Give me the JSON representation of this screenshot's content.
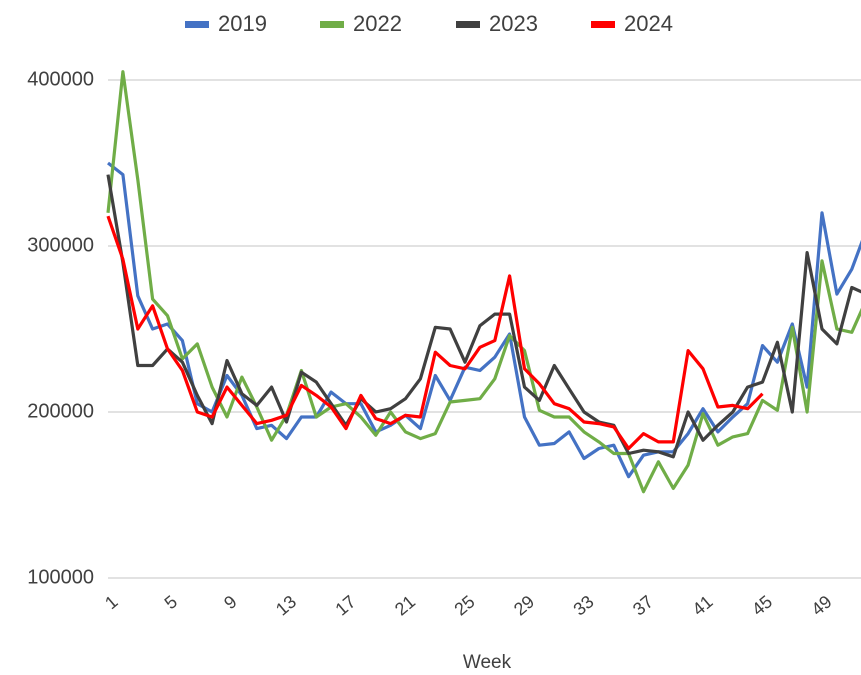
{
  "chart_data": {
    "type": "line",
    "x_label": "Week",
    "x": [
      1,
      2,
      3,
      4,
      5,
      6,
      7,
      8,
      9,
      10,
      11,
      12,
      13,
      14,
      15,
      16,
      17,
      18,
      19,
      20,
      21,
      22,
      23,
      24,
      25,
      26,
      27,
      28,
      29,
      30,
      31,
      32,
      33,
      34,
      35,
      36,
      37,
      38,
      39,
      40,
      41,
      42,
      43,
      44,
      45,
      46,
      47,
      48,
      49,
      50,
      51,
      52
    ],
    "xlim": [
      1,
      52
    ],
    "xticks": [
      1,
      5,
      9,
      13,
      17,
      21,
      25,
      29,
      33,
      37,
      41,
      45,
      49
    ],
    "ylim": [
      100000,
      400000
    ],
    "yticks": [
      100000,
      200000,
      300000,
      400000
    ],
    "grid": true,
    "legend": "top",
    "series": [
      {
        "name": "2019",
        "color": "#4472c4",
        "values": [
          350000,
          343000,
          270000,
          250000,
          253000,
          243000,
          205000,
          200000,
          222000,
          210000,
          190000,
          192000,
          184000,
          197000,
          197000,
          212000,
          205000,
          205000,
          188000,
          192000,
          198000,
          190000,
          222000,
          207000,
          227000,
          225000,
          233000,
          247000,
          197000,
          180000,
          181000,
          188000,
          172000,
          178000,
          180000,
          161000,
          174000,
          176000,
          176000,
          187000,
          202000,
          188000,
          197000,
          205000,
          240000,
          230000,
          253000,
          215000,
          320000,
          271000,
          286000,
          310000
        ]
      },
      {
        "name": "2022",
        "color": "#70ad47",
        "values": [
          320000,
          405000,
          340000,
          268000,
          258000,
          232000,
          241000,
          215000,
          197000,
          221000,
          203000,
          183000,
          198000,
          225000,
          197000,
          203000,
          205000,
          197000,
          186000,
          200000,
          188000,
          184000,
          187000,
          206000,
          207000,
          208000,
          220000,
          246000,
          237000,
          201000,
          197000,
          197000,
          188000,
          182000,
          175000,
          175000,
          152000,
          170000,
          154000,
          168000,
          199000,
          180000,
          185000,
          187000,
          207000,
          201000,
          251000,
          200000,
          291000,
          250000,
          248000,
          268000
        ]
      },
      {
        "name": "2023",
        "color": "#404040",
        "values": [
          343000,
          290000,
          228000,
          228000,
          238000,
          230000,
          210000,
          193000,
          231000,
          211000,
          204000,
          215000,
          194000,
          224000,
          218000,
          205000,
          192000,
          208000,
          200000,
          202000,
          208000,
          220000,
          251000,
          250000,
          230000,
          252000,
          259000,
          259000,
          215000,
          207000,
          228000,
          214000,
          200000,
          194000,
          192000,
          175000,
          177000,
          176000,
          173000,
          200000,
          183000,
          192000,
          200000,
          215000,
          218000,
          242000,
          200000,
          296000,
          250000,
          241000,
          275000,
          271000
        ]
      },
      {
        "name": "2024",
        "color": "#ff0000",
        "values": [
          318000,
          292000,
          250000,
          264000,
          238000,
          225000,
          200000,
          197000,
          215000,
          204000,
          193000,
          195000,
          198000,
          216000,
          210000,
          203000,
          190000,
          210000,
          196000,
          193000,
          198000,
          197000,
          236000,
          228000,
          226000,
          239000,
          243000,
          282000,
          226000,
          217000,
          205000,
          202000,
          194000,
          193000,
          191000,
          178000,
          187000,
          182000,
          182000,
          237000,
          226000,
          203000,
          204000,
          202000,
          211000,
          null,
          null,
          null,
          null,
          null,
          null,
          null
        ]
      }
    ]
  }
}
